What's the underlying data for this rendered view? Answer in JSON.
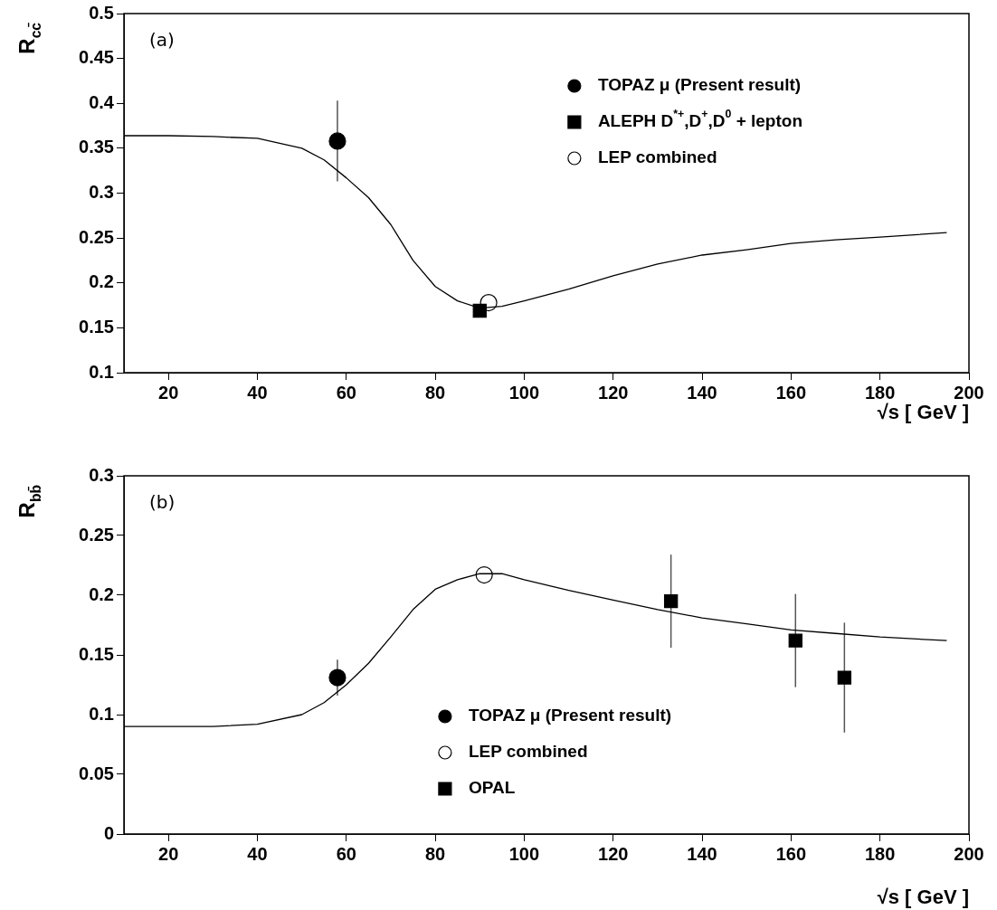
{
  "chart_data": [
    {
      "type": "scatter",
      "xlabel": "√s [ GeV ]",
      "ylabel": "R$_{cc̄}$",
      "annotations": [
        "(a)"
      ],
      "xlim": [
        10,
        200
      ],
      "ylim": [
        0.1,
        0.5
      ],
      "xticks": [
        20,
        40,
        60,
        80,
        100,
        120,
        140,
        160,
        180,
        200
      ],
      "yticks": [
        0.1,
        0.15,
        0.2,
        0.25,
        0.3,
        0.35,
        0.4,
        0.45,
        0.5
      ],
      "legend": "top right",
      "grid": false,
      "series": [
        {
          "type": "line",
          "color": "#000000",
          "marker": "none",
          "x": [
            10,
            20,
            30,
            40,
            50,
            55,
            60,
            65,
            70,
            75,
            80,
            85,
            90,
            95,
            100,
            110,
            120,
            130,
            140,
            150,
            160,
            170,
            180,
            195
          ],
          "values": [
            0.364,
            0.364,
            0.363,
            0.361,
            0.35,
            0.337,
            0.317,
            0.295,
            0.265,
            0.225,
            0.196,
            0.18,
            0.172,
            0.174,
            0.18,
            0.193,
            0.208,
            0.221,
            0.231,
            0.237,
            0.244,
            0.248,
            0.251,
            0.256
          ]
        },
        {
          "name": "TOPAZ μ (Present result)",
          "color": "#000000",
          "marker": "circle",
          "x": [
            58
          ],
          "values": [
            0.358
          ],
          "errors": [
            0.045
          ]
        },
        {
          "name": "ALEPH D$^{*+}$,D$^{+}$,D$^{0}$ + lepton",
          "color": "#000000",
          "marker": "square",
          "x": [
            90
          ],
          "values": [
            0.169
          ]
        },
        {
          "name": "LEP combined",
          "color": "#ffffff",
          "marker": "circle",
          "x": [
            92
          ],
          "values": [
            0.178
          ]
        }
      ]
    },
    {
      "type": "scatter",
      "xlabel": "√s [ GeV ]",
      "ylabel": "R$_{bb̄}$",
      "annotations": [
        "(b)"
      ],
      "xlim": [
        10,
        200
      ],
      "ylim": [
        0,
        0.3
      ],
      "xticks": [
        20,
        40,
        60,
        80,
        100,
        120,
        140,
        160,
        180,
        200
      ],
      "yticks": [
        0,
        0.05,
        0.1,
        0.15,
        0.2,
        0.25,
        0.3
      ],
      "legend": "bottom",
      "grid": false,
      "series": [
        {
          "type": "line",
          "color": "#000000",
          "marker": "none",
          "x": [
            10,
            20,
            30,
            40,
            50,
            55,
            60,
            65,
            70,
            75,
            80,
            85,
            90,
            95,
            100,
            110,
            120,
            130,
            140,
            150,
            160,
            170,
            180,
            195
          ],
          "values": [
            0.09,
            0.09,
            0.09,
            0.092,
            0.1,
            0.11,
            0.125,
            0.143,
            0.165,
            0.188,
            0.205,
            0.213,
            0.218,
            0.218,
            0.213,
            0.204,
            0.196,
            0.188,
            0.181,
            0.176,
            0.171,
            0.168,
            0.165,
            0.162
          ]
        },
        {
          "name": "TOPAZ μ (Present result)",
          "color": "#000000",
          "marker": "circle",
          "x": [
            58
          ],
          "values": [
            0.131
          ],
          "errors": [
            0.015
          ]
        },
        {
          "name": "LEP combined",
          "color": "#ffffff",
          "marker": "circle",
          "x": [
            91
          ],
          "values": [
            0.217
          ]
        },
        {
          "name": "OPAL",
          "color": "#000000",
          "marker": "square",
          "x": [
            133,
            161,
            172
          ],
          "values": [
            0.195,
            0.162,
            0.131
          ],
          "errors": [
            0.039,
            0.039,
            0.046
          ]
        }
      ]
    }
  ]
}
